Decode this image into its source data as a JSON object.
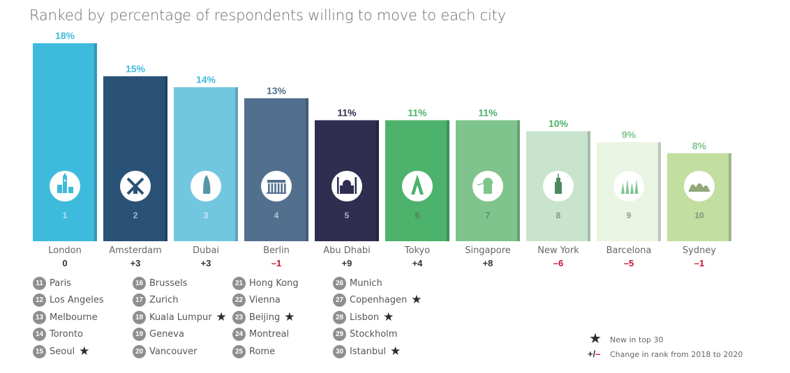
{
  "title": "Ranked by percentage of respondents willing to move to each city",
  "chart_data": {
    "type": "bar",
    "categories": [
      "London",
      "Amsterdam",
      "Dubai",
      "Berlin",
      "Abu Dhabi",
      "Tokyo",
      "Singapore",
      "New York",
      "Barcelona",
      "Sydney"
    ],
    "values": [
      18,
      15,
      14,
      13,
      11,
      11,
      11,
      10,
      9,
      8
    ],
    "value_labels": [
      "18%",
      "15%",
      "14%",
      "13%",
      "11%",
      "11%",
      "11%",
      "10%",
      "9%",
      "8%"
    ],
    "ranks": [
      "1",
      "2",
      "3",
      "4",
      "5",
      "6",
      "7",
      "8",
      "9",
      "10"
    ],
    "rank_changes": [
      "0",
      "+3",
      "+3",
      "–1",
      "+9",
      "+4",
      "+8",
      "–6",
      "–5",
      "–1"
    ],
    "icons": [
      "big-ben-icon",
      "windmill-icon",
      "burj-al-arab-icon",
      "brandenburg-gate-icon",
      "mosque-icon",
      "tokyo-tower-icon",
      "merlion-icon",
      "empire-state-icon",
      "sagrada-familia-icon",
      "opera-house-icon"
    ],
    "bar_colors": [
      "#3ebbdc",
      "#2a5276",
      "#72c7e0",
      "#526f8e",
      "#2f2d50",
      "#4db26b",
      "#7fc48c",
      "#c8e4cc",
      "#eaf4e2",
      "#c2dea1"
    ],
    "label_colors": [
      "#3ebbdc",
      "#3ebbdc",
      "#3ebbdc",
      "#526f8e",
      "#2f2d50",
      "#4db26b",
      "#4db26b",
      "#4db26b",
      "#7fc48c",
      "#7fc48c"
    ],
    "change_colors": [
      "#333333",
      "#333333",
      "#333333",
      "#c8102e",
      "#333333",
      "#333333",
      "#333333",
      "#c8102e",
      "#c8102e",
      "#c8102e"
    ],
    "ylim": [
      0,
      18
    ]
  },
  "ranked_list": [
    [
      {
        "rank": "11",
        "city": "Paris",
        "new": false
      },
      {
        "rank": "12",
        "city": "Los Angeles",
        "new": false
      },
      {
        "rank": "13",
        "city": "Melbourne",
        "new": false
      },
      {
        "rank": "14",
        "city": "Toronto",
        "new": false
      },
      {
        "rank": "15",
        "city": "Seoul",
        "new": true
      }
    ],
    [
      {
        "rank": "16",
        "city": "Brussels",
        "new": false
      },
      {
        "rank": "17",
        "city": "Zurich",
        "new": false
      },
      {
        "rank": "18",
        "city": "Kuala Lumpur",
        "new": true
      },
      {
        "rank": "19",
        "city": "Geneva",
        "new": false
      },
      {
        "rank": "20",
        "city": "Vancouver",
        "new": false
      }
    ],
    [
      {
        "rank": "21",
        "city": "Hong Kong",
        "new": false
      },
      {
        "rank": "22",
        "city": "Vienna",
        "new": false
      },
      {
        "rank": "23",
        "city": "Beijing",
        "new": true
      },
      {
        "rank": "24",
        "city": "Montreal",
        "new": false
      },
      {
        "rank": "25",
        "city": "Rome",
        "new": false
      }
    ],
    [
      {
        "rank": "26",
        "city": "Munich",
        "new": false
      },
      {
        "rank": "27",
        "city": "Copenhagen",
        "new": true
      },
      {
        "rank": "28",
        "city": "Lisbon",
        "new": true
      },
      {
        "rank": "29",
        "city": "Stockholm",
        "new": false
      },
      {
        "rank": "30",
        "city": "Istanbul",
        "new": true
      }
    ]
  ],
  "key": {
    "new_label": "New in top 30",
    "change_symbol": "+/–",
    "change_label": "Change in rank from 2018 to 2020"
  }
}
